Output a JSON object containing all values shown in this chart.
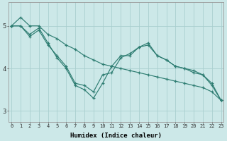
{
  "xlabel": "Humidex (Indice chaleur)",
  "bg_color": "#cce8e8",
  "line_color": "#2e7d72",
  "grid_color_major": "#aacfcf",
  "grid_color_minor": "#bbdada",
  "line1_x": [
    0,
    1,
    2,
    3,
    4,
    5,
    6,
    7,
    8,
    9,
    10,
    11,
    12,
    13,
    14,
    15,
    16,
    17,
    18,
    19,
    20,
    21,
    22,
    23
  ],
  "line1_y": [
    5.0,
    5.2,
    5.0,
    5.0,
    4.8,
    4.7,
    4.55,
    4.45,
    4.3,
    4.2,
    4.1,
    4.05,
    4.0,
    3.95,
    3.9,
    3.85,
    3.8,
    3.75,
    3.7,
    3.65,
    3.6,
    3.55,
    3.45,
    3.25
  ],
  "line2_x": [
    0,
    1,
    2,
    3,
    4,
    5,
    6,
    7,
    8,
    9,
    10,
    11,
    12,
    13,
    14,
    15,
    16,
    17,
    18,
    19,
    20,
    21,
    22,
    23
  ],
  "line2_y": [
    5.0,
    5.0,
    4.75,
    4.9,
    4.55,
    4.3,
    4.05,
    3.65,
    3.6,
    3.45,
    3.85,
    3.9,
    4.25,
    4.35,
    4.5,
    4.6,
    4.3,
    4.2,
    4.05,
    4.0,
    3.9,
    3.85,
    3.65,
    3.25
  ],
  "line3_x": [
    0,
    1,
    2,
    3,
    4,
    5,
    6,
    7,
    8,
    9,
    10,
    11,
    12,
    13,
    14,
    15,
    16,
    17,
    18,
    19,
    20,
    21,
    22,
    23
  ],
  "line3_y": [
    5.0,
    5.0,
    4.8,
    4.95,
    4.6,
    4.25,
    4.0,
    3.6,
    3.5,
    3.3,
    3.65,
    4.05,
    4.3,
    4.3,
    4.5,
    4.55,
    4.3,
    4.2,
    4.05,
    4.0,
    3.95,
    3.85,
    3.6,
    3.25
  ],
  "ylim": [
    2.75,
    5.55
  ],
  "xlim": [
    -0.3,
    23.3
  ],
  "yticks": [
    3,
    4,
    5
  ],
  "xticks": [
    0,
    1,
    2,
    3,
    4,
    5,
    6,
    7,
    8,
    9,
    10,
    11,
    12,
    13,
    14,
    15,
    16,
    17,
    18,
    19,
    20,
    21,
    22,
    23
  ]
}
